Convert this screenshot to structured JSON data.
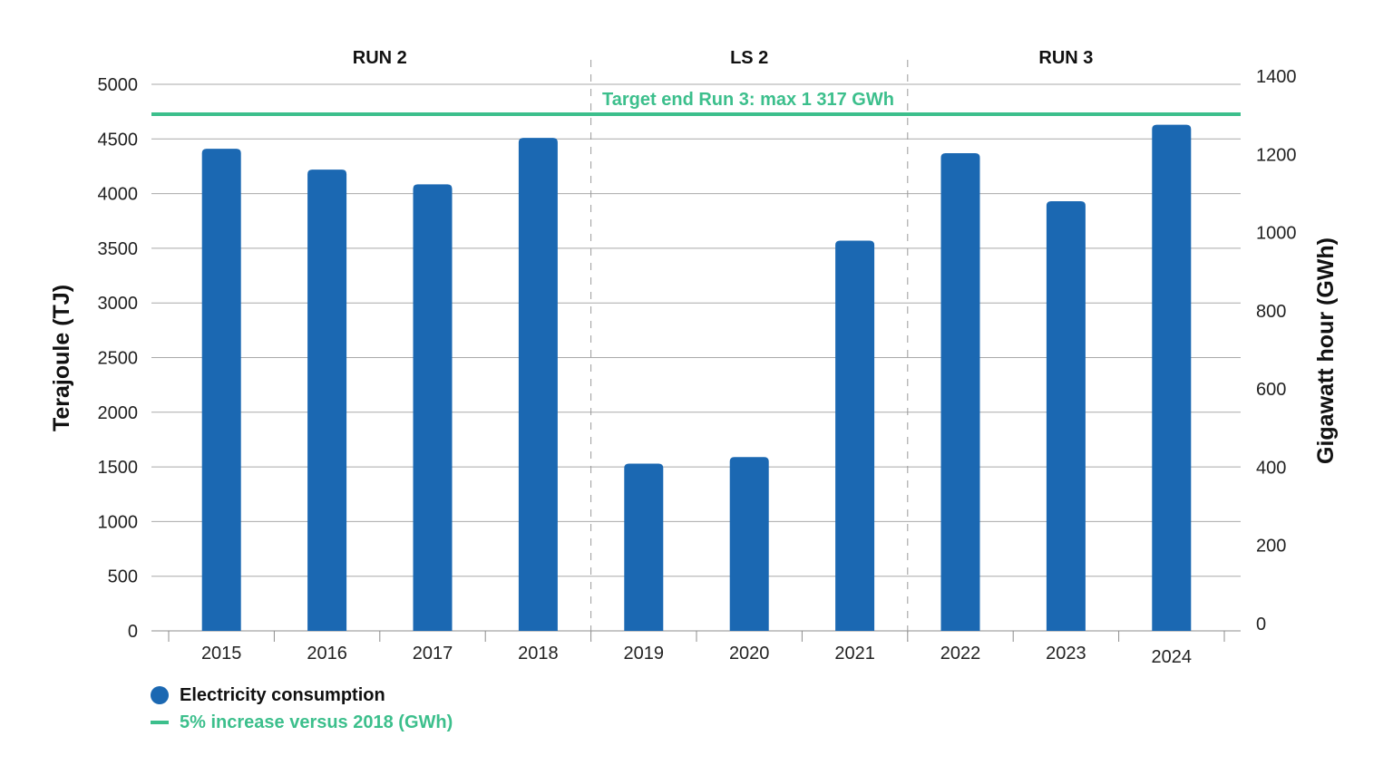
{
  "chart_data": {
    "type": "bar",
    "categories": [
      "2015",
      "2016",
      "2017",
      "2018",
      "2019",
      "2020",
      "2021",
      "2022",
      "2023",
      "2024"
    ],
    "series": [
      {
        "name": "Electricity consumption",
        "values": [
          4410,
          4220,
          4085,
          4510,
          1530,
          1590,
          3570,
          4370,
          3930,
          4630
        ],
        "color": "#1b68b2"
      }
    ],
    "ylabel": "Terajoule (TJ)",
    "ylim": [
      0,
      5000
    ],
    "yticks": [
      "0",
      "500",
      "1000",
      "1500",
      "2000",
      "2500",
      "3000",
      "3500",
      "4000",
      "4500",
      "5000"
    ],
    "y2label": "Gigawatt hour (GWh)",
    "y2lim": [
      0,
      1400
    ],
    "y2ticks": [
      "0",
      "200",
      "400",
      "600",
      "800",
      "1000",
      "1200",
      "1400"
    ],
    "grid": true,
    "periods": [
      {
        "label": "RUN 2",
        "start": 0,
        "end": 3
      },
      {
        "label": "LS 2",
        "start": 4,
        "end": 6
      },
      {
        "label": "RUN 3",
        "start": 7,
        "end": 9
      }
    ],
    "target_line": {
      "name": "5% increase versus 2018 (GWh)",
      "label": "Target end Run 3: max 1 317 GWh",
      "value_gwh": 1317,
      "color": "#3cbf8c"
    },
    "legend": {
      "position": "bottom-left",
      "items": [
        {
          "label": "Electricity consumption",
          "marker": "dot",
          "color": "#1b68b2"
        },
        {
          "label": "5% increase versus 2018 (GWh)",
          "marker": "line",
          "color": "#3cbf8c"
        }
      ]
    }
  }
}
